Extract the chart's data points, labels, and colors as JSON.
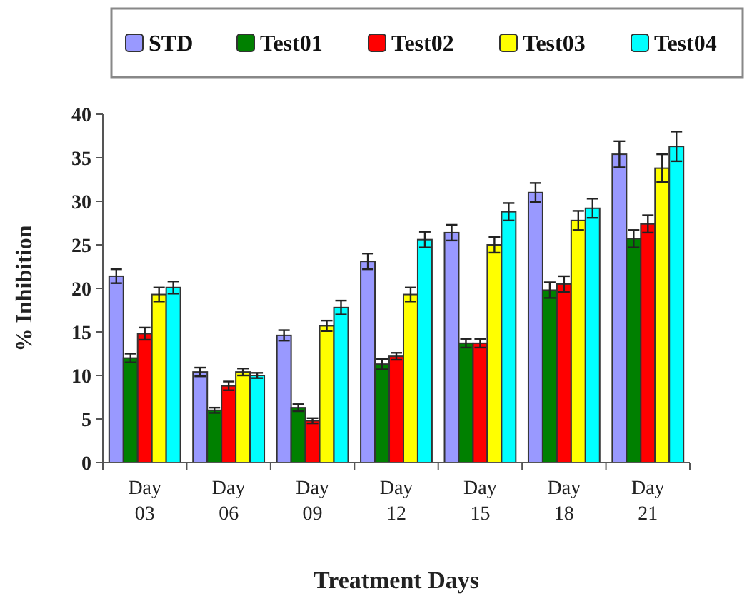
{
  "chart_data": {
    "type": "bar",
    "xlabel": "Treatment Days",
    "ylabel": "% Inhibition",
    "categories": [
      "Day 03",
      "Day 06",
      "Day 09",
      "Day 12",
      "Day 15",
      "Day 18",
      "Day 21"
    ],
    "series": [
      {
        "name": "STD",
        "color": "#9999ff",
        "values": [
          21.4,
          10.4,
          14.6,
          23.1,
          26.4,
          31.0,
          35.4
        ],
        "errors": [
          0.8,
          0.5,
          0.6,
          0.9,
          0.9,
          1.1,
          1.5
        ]
      },
      {
        "name": "Test01",
        "color": "#008000",
        "values": [
          12.0,
          6.0,
          6.3,
          11.3,
          13.7,
          19.8,
          25.7
        ],
        "errors": [
          0.5,
          0.3,
          0.4,
          0.6,
          0.5,
          0.9,
          1.0
        ]
      },
      {
        "name": "Test02",
        "color": "#ff0000",
        "values": [
          14.8,
          8.8,
          4.8,
          12.2,
          13.7,
          20.5,
          27.4
        ],
        "errors": [
          0.7,
          0.5,
          0.3,
          0.4,
          0.5,
          0.9,
          1.0
        ]
      },
      {
        "name": "Test03",
        "color": "#ffff00",
        "values": [
          19.3,
          10.4,
          15.7,
          19.3,
          25.0,
          27.8,
          33.8
        ],
        "errors": [
          0.8,
          0.4,
          0.6,
          0.8,
          0.9,
          1.1,
          1.6
        ]
      },
      {
        "name": "Test04",
        "color": "#00ffff",
        "values": [
          20.1,
          10.0,
          17.8,
          25.6,
          28.8,
          29.2,
          36.3
        ],
        "errors": [
          0.7,
          0.3,
          0.8,
          0.9,
          1.0,
          1.1,
          1.7
        ]
      }
    ],
    "ylim": [
      0,
      40
    ],
    "yticks": [
      0,
      5,
      10,
      15,
      20,
      25,
      30,
      35,
      40
    ],
    "grid": false,
    "legend": "top"
  }
}
